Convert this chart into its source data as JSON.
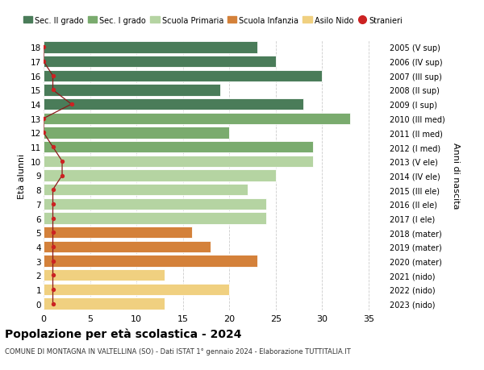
{
  "ages": [
    18,
    17,
    16,
    15,
    14,
    13,
    12,
    11,
    10,
    9,
    8,
    7,
    6,
    5,
    4,
    3,
    2,
    1,
    0
  ],
  "right_labels": [
    "2005 (V sup)",
    "2006 (IV sup)",
    "2007 (III sup)",
    "2008 (II sup)",
    "2009 (I sup)",
    "2010 (III med)",
    "2011 (II med)",
    "2012 (I med)",
    "2013 (V ele)",
    "2014 (IV ele)",
    "2015 (III ele)",
    "2016 (II ele)",
    "2017 (I ele)",
    "2018 (mater)",
    "2019 (mater)",
    "2020 (mater)",
    "2021 (nido)",
    "2022 (nido)",
    "2023 (nido)"
  ],
  "bar_values": [
    23,
    25,
    30,
    19,
    28,
    33,
    20,
    29,
    29,
    25,
    22,
    24,
    24,
    16,
    18,
    23,
    13,
    20,
    13
  ],
  "bar_colors": [
    "#4a7c59",
    "#4a7c59",
    "#4a7c59",
    "#4a7c59",
    "#4a7c59",
    "#7aab6e",
    "#7aab6e",
    "#7aab6e",
    "#b5d4a2",
    "#b5d4a2",
    "#b5d4a2",
    "#b5d4a2",
    "#b5d4a2",
    "#d4813a",
    "#d4813a",
    "#d4813a",
    "#f0d080",
    "#f0d080",
    "#f0d080"
  ],
  "stranieri_values": [
    0,
    0,
    1,
    1,
    3,
    0,
    0,
    1,
    2,
    2,
    1,
    1,
    1,
    1,
    1,
    1,
    1,
    1,
    1
  ],
  "title": "Popolazione per età scolastica - 2024",
  "subtitle": "COMUNE DI MONTAGNA IN VALTELLINA (SO) - Dati ISTAT 1° gennaio 2024 - Elaborazione TUTTITALIA.IT",
  "ylabel": "Età alunni",
  "right_ylabel": "Anni di nascita",
  "legend_items": [
    {
      "label": "Sec. II grado",
      "color": "#4a7c59"
    },
    {
      "label": "Sec. I grado",
      "color": "#7aab6e"
    },
    {
      "label": "Scuola Primaria",
      "color": "#b5d4a2"
    },
    {
      "label": "Scuola Infanzia",
      "color": "#d4813a"
    },
    {
      "label": "Asilo Nido",
      "color": "#f0d080"
    },
    {
      "label": "Stranieri",
      "color": "#cc2222"
    }
  ],
  "xlim": [
    0,
    37
  ],
  "xticks": [
    0,
    5,
    10,
    15,
    20,
    25,
    30,
    35
  ],
  "background_color": "#ffffff",
  "grid_color": "#cccccc",
  "bar_height": 0.82
}
